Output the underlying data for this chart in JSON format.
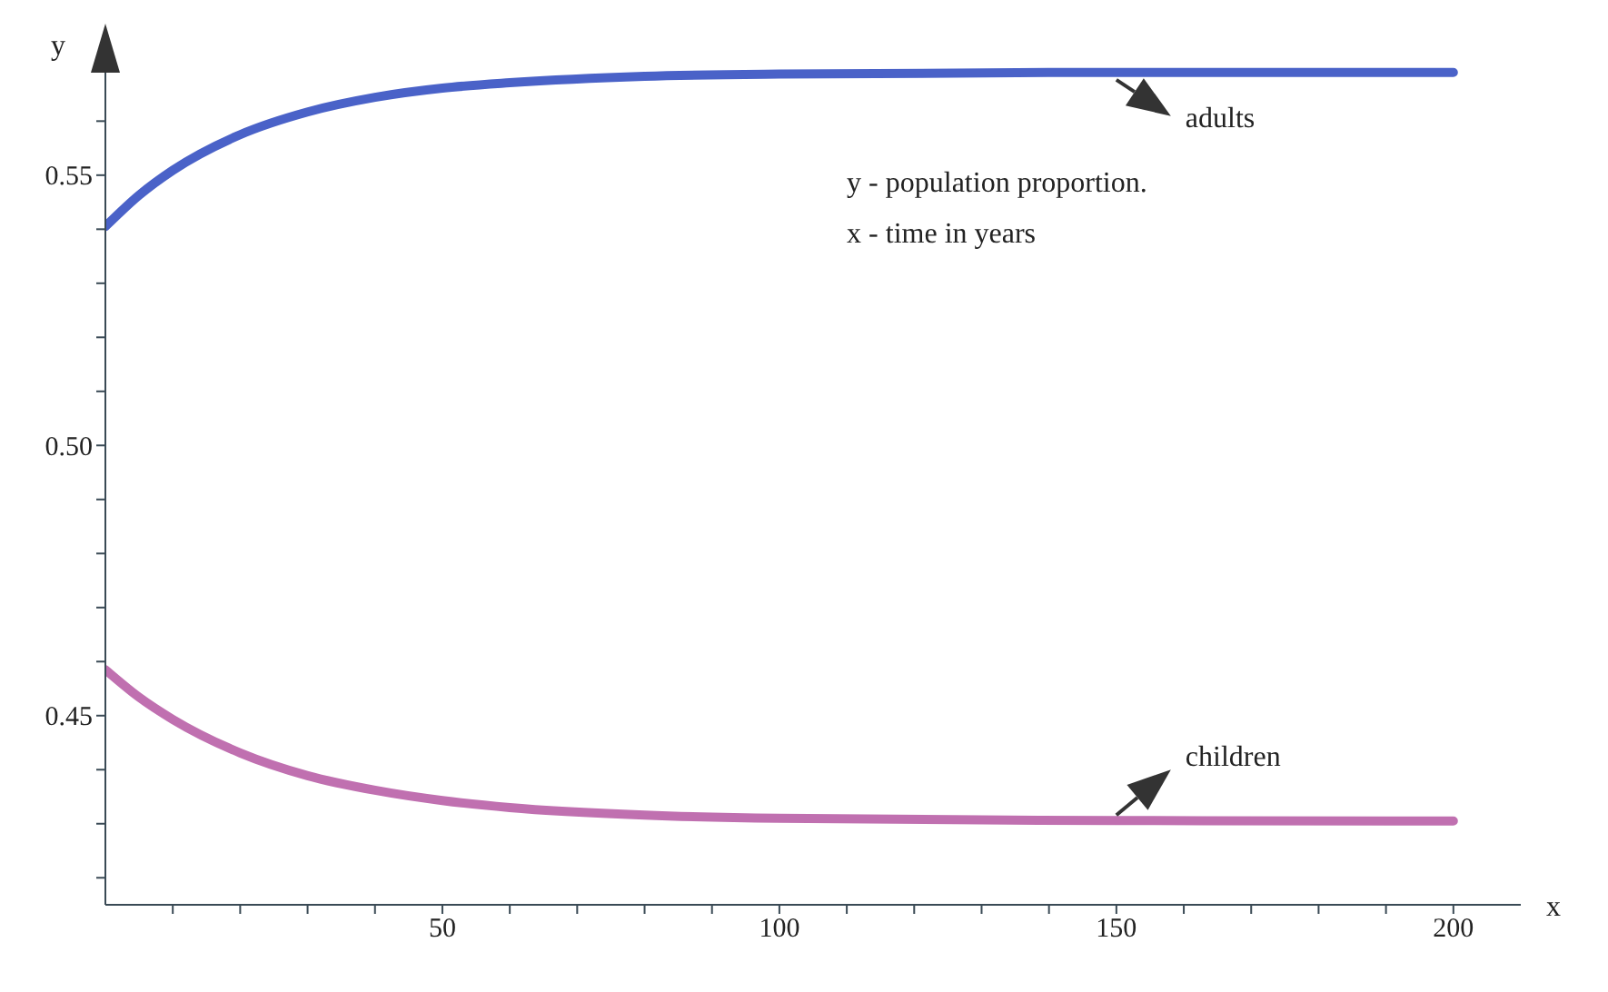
{
  "chart_data": {
    "type": "line",
    "xlabel": "x",
    "ylabel": "y",
    "x": [
      0,
      5,
      10,
      20,
      30,
      40,
      50,
      60,
      80,
      100,
      150,
      200
    ],
    "series": [
      {
        "name": "adults",
        "color": "#4a62c8",
        "values": [
          0.5405,
          0.5463,
          0.5509,
          0.5575,
          0.5617,
          0.5644,
          0.5661,
          0.5671,
          0.5683,
          0.5687,
          0.569,
          0.569
        ]
      },
      {
        "name": "children",
        "color": "#c070b0",
        "values": [
          0.4585,
          0.4534,
          0.4493,
          0.4431,
          0.4389,
          0.4362,
          0.4343,
          0.433,
          0.4316,
          0.431,
          0.4306,
          0.4305
        ]
      }
    ],
    "xlim": [
      0,
      210
    ],
    "xticks": [
      {
        "value": 10,
        "label": null
      },
      {
        "value": 20,
        "label": null
      },
      {
        "value": 30,
        "label": null
      },
      {
        "value": 40,
        "label": null
      },
      50,
      {
        "value": 60,
        "label": null
      },
      {
        "value": 70,
        "label": null
      },
      {
        "value": 80,
        "label": null
      },
      {
        "value": 90,
        "label": null
      },
      100,
      {
        "value": 110,
        "label": null
      },
      {
        "value": 120,
        "label": null
      },
      {
        "value": 130,
        "label": null
      },
      {
        "value": 140,
        "label": null
      },
      150,
      {
        "value": 160,
        "label": null
      },
      {
        "value": 170,
        "label": null
      },
      {
        "value": 180,
        "label": null
      },
      {
        "value": 190,
        "label": null
      },
      200
    ],
    "ylim": [
      0.415,
      0.573
    ],
    "yticks": [
      {
        "value": 0.42,
        "label": null
      },
      {
        "value": 0.43,
        "label": null
      },
      {
        "value": 0.44,
        "label": null
      },
      {
        "value": 0.45,
        "label": "0.45"
      },
      {
        "value": 0.46,
        "label": null
      },
      {
        "value": 0.47,
        "label": null
      },
      {
        "value": 0.48,
        "label": null
      },
      {
        "value": 0.49,
        "label": null
      },
      {
        "value": 0.5,
        "label": "0.50"
      },
      {
        "value": 0.51,
        "label": null
      },
      {
        "value": 0.52,
        "label": null
      },
      {
        "value": 0.53,
        "label": null
      },
      {
        "value": 0.54,
        "label": null
      },
      {
        "value": 0.55,
        "label": "0.55"
      },
      {
        "value": 0.56,
        "label": null
      },
      {
        "value": 0.57,
        "label": null
      }
    ],
    "annotations": [
      "y - population proportion.",
      "x - time in years"
    ],
    "grid": false,
    "legend": false,
    "marker": "none",
    "line_style": "solid"
  }
}
